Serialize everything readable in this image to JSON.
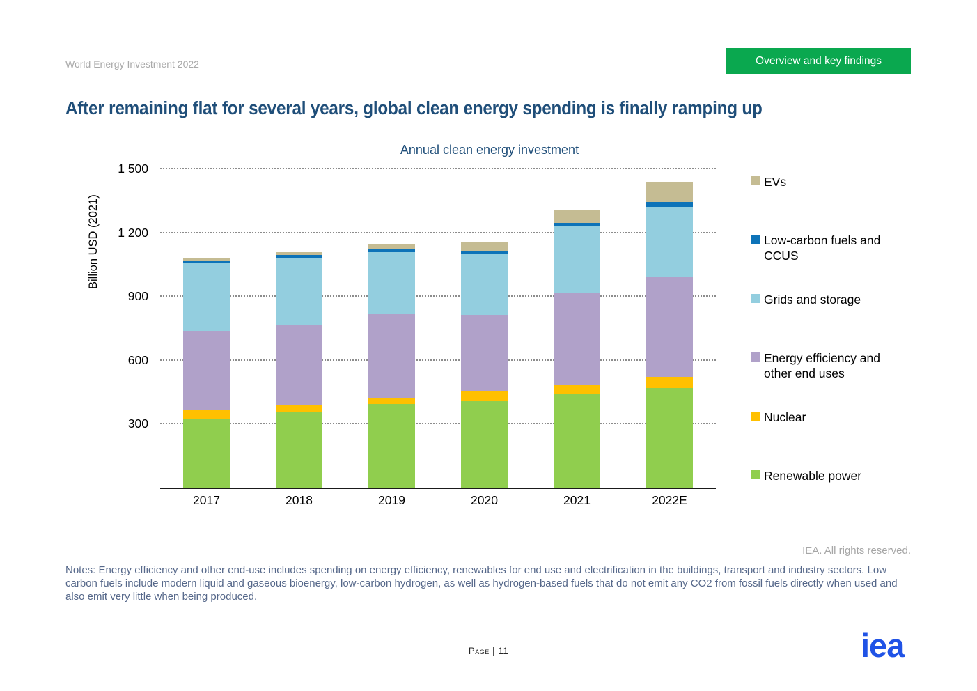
{
  "header": {
    "report_label": "World Energy Investment 2022",
    "section_button_label": "Overview and key findings",
    "button_color": "#0aa84f"
  },
  "page_title": "After remaining flat for several years, global clean energy spending is finally ramping up",
  "chart_data": {
    "type": "bar",
    "stacked": true,
    "title": "Annual clean energy investment",
    "ylabel": "Billion USD (2021)",
    "ylim": [
      0,
      1500
    ],
    "yticks": [
      300,
      600,
      900,
      1200,
      1500
    ],
    "ytick_labels": [
      "300",
      "600",
      "900",
      "1 200",
      "1 500"
    ],
    "grid": "dotted-horizontal",
    "legend_position": "right",
    "categories": [
      "2017",
      "2018",
      "2019",
      "2020",
      "2021",
      "2022E"
    ],
    "series": [
      {
        "name": "Renewable power",
        "color": "#90ce4e",
        "values": [
          320,
          355,
          393,
          410,
          440,
          470
        ]
      },
      {
        "name": "Nuclear",
        "color": "#ffc000",
        "values": [
          42,
          35,
          31,
          46,
          46,
          52
        ]
      },
      {
        "name": "Energy efficiency and other end uses",
        "color": "#b0a1c9",
        "values": [
          375,
          374,
          390,
          357,
          431,
          467
        ]
      },
      {
        "name": "Grids and storage",
        "color": "#93cedf",
        "values": [
          318,
          315,
          292,
          288,
          315,
          331
        ]
      },
      {
        "name": "Low-carbon fuels and CCUS",
        "color": "#0d73b8",
        "values": [
          14,
          14,
          14,
          12,
          14,
          22
        ]
      },
      {
        "name": "EVs",
        "color": "#c5bc93",
        "values": [
          11,
          15,
          25,
          39,
          62,
          96
        ]
      }
    ],
    "totals": [
      1080,
      1108,
      1145,
      1152,
      1308,
      1438
    ]
  },
  "legend": {
    "items": [
      {
        "label": "EVs",
        "color": "#c5bc93"
      },
      {
        "label": "Low-carbon fuels and CCUS",
        "color": "#0d73b8"
      },
      {
        "label": "Grids and storage",
        "color": "#93cedf"
      },
      {
        "label": "Energy efficiency and other end uses",
        "color": "#b0a1c9"
      },
      {
        "label": "Nuclear",
        "color": "#ffc000"
      },
      {
        "label": "Renewable power",
        "color": "#90ce4e"
      }
    ]
  },
  "footer": {
    "rights": "IEA. All rights reserved.",
    "notes": "Notes: Energy efficiency and other end-use includes spending on energy efficiency, renewables for end use and electrification in the buildings, transport and industry sectors. Low carbon fuels include modern liquid and gaseous bioenergy, low-carbon hydrogen, as well as hydrogen-based fuels that do not emit any CO2 from fossil fuels directly when used and also emit very little when being produced.",
    "page_label": "Page | 11",
    "logo_text": "iea"
  }
}
